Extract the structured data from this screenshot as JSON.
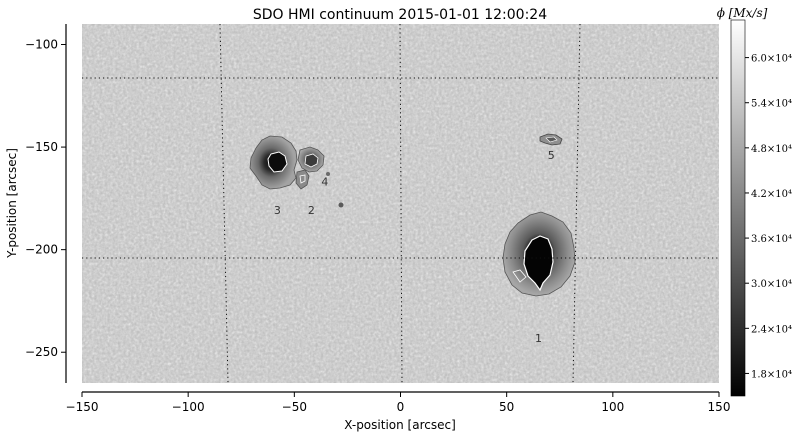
{
  "chart_data": {
    "type": "heatmap",
    "title": "SDO HMI continuum 2015-01-01 12:00:24",
    "xlabel": "X-position [arcsec]",
    "ylabel": "Y-position [arcsec]",
    "xlim": [
      -150,
      150
    ],
    "ylim": [
      -265,
      -90
    ],
    "x_ticks": [
      -150,
      -100,
      -50,
      0,
      50,
      100,
      150
    ],
    "y_ticks": [
      -100,
      -150,
      -200,
      -250
    ],
    "x_tick_labels": [
      "−150",
      "−100",
      "−50",
      "0",
      "50",
      "100",
      "150"
    ],
    "y_tick_labels": [
      "−100",
      "−150",
      "−200",
      "−250"
    ],
    "grid": "dotted",
    "colormap": "gray",
    "colorbar": {
      "label": "ϕ [Mx/s]",
      "tick_values": [
        18000,
        24000,
        30000,
        36000,
        42000,
        48000,
        54000,
        60000
      ],
      "tick_labels": [
        "1.8×10⁴",
        "2.4×10⁴",
        "3.0×10⁴",
        "3.6×10⁴",
        "4.2×10⁴",
        "4.8×10⁴",
        "5.4×10⁴",
        "6.0×10⁴"
      ],
      "range": [
        15000,
        65000
      ]
    },
    "regions": [
      {
        "label": "1",
        "x": 65,
        "y": -204
      },
      {
        "label": "2",
        "x": -42,
        "y": -167
      },
      {
        "label": "3",
        "x": -58,
        "y": -163
      },
      {
        "label": "4",
        "x": -38,
        "y": -162
      },
      {
        "label": "5",
        "x": 71,
        "y": -146
      }
    ]
  }
}
